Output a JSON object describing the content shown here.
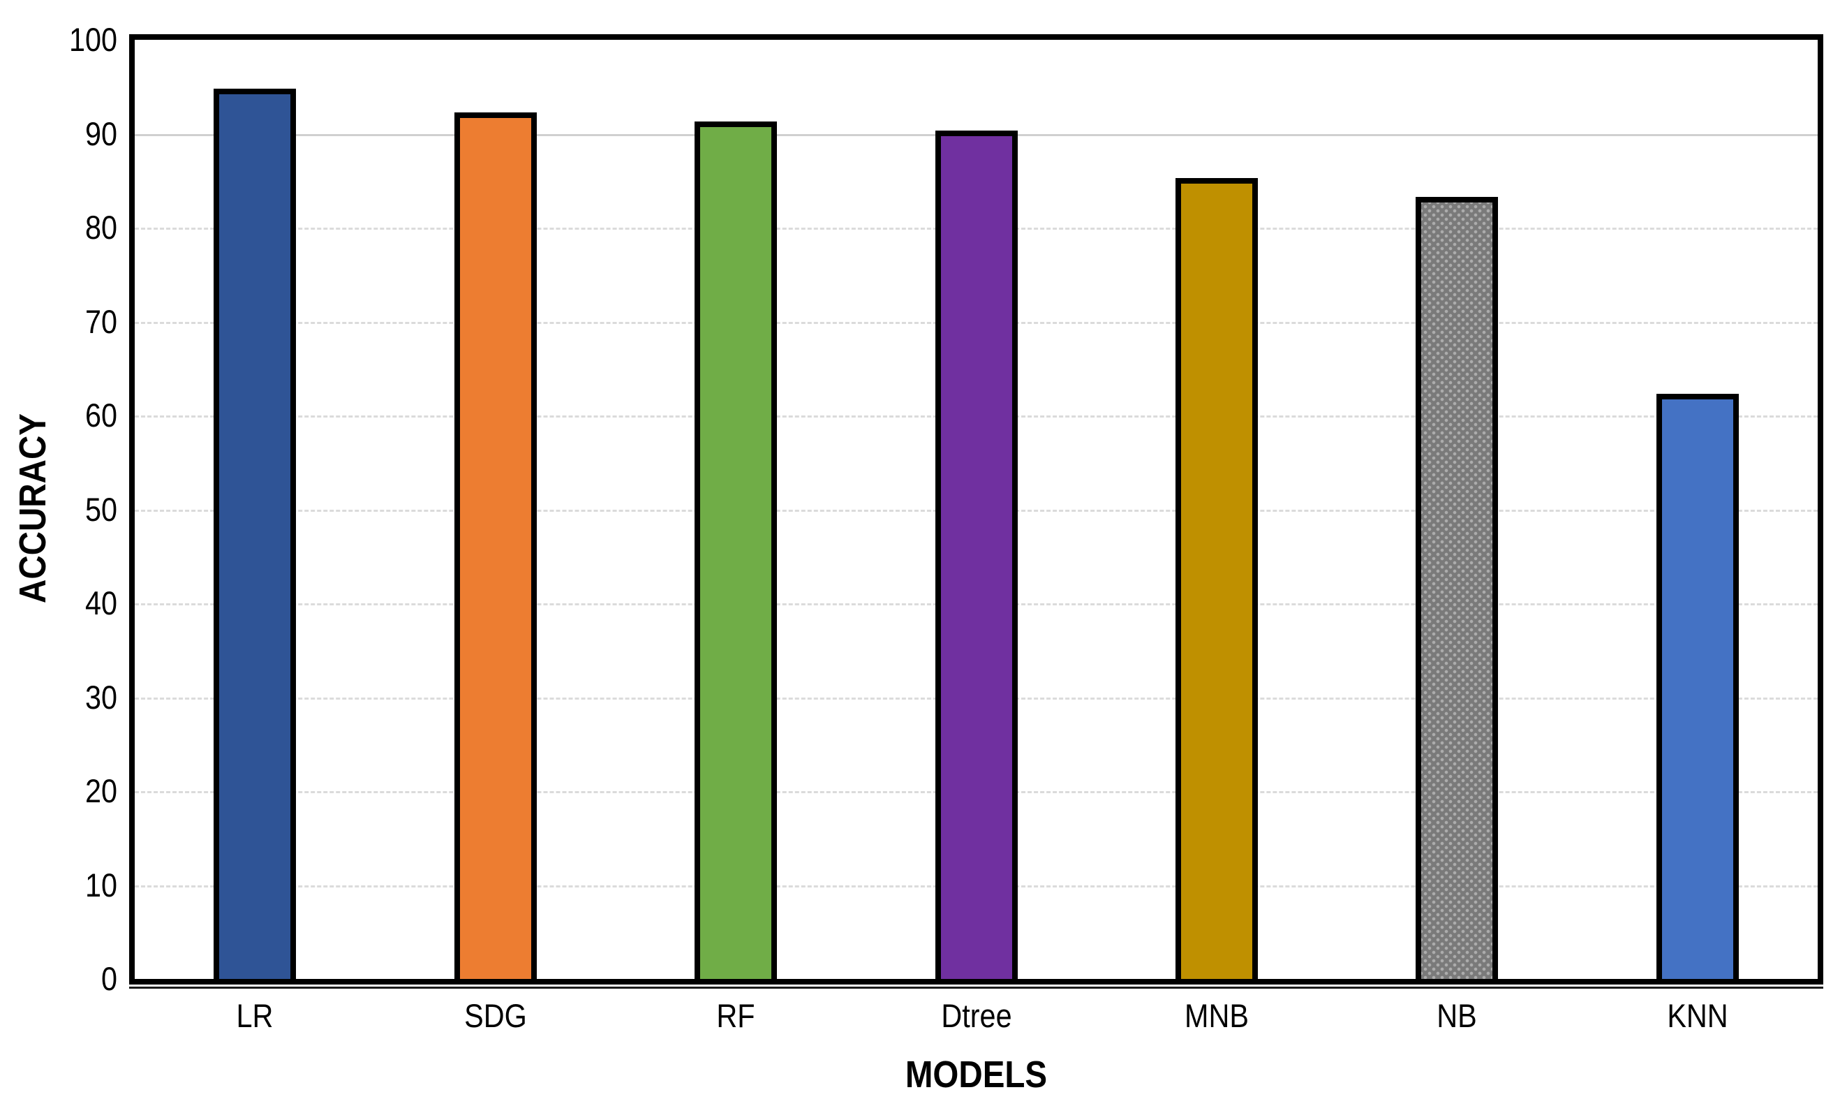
{
  "chart_data": {
    "type": "bar",
    "title": "",
    "xlabel": "MODELS",
    "ylabel": "ACCURACY",
    "categories": [
      "LR",
      "SDG",
      "RF",
      "Dtree",
      "MNB",
      "NB",
      "KNN"
    ],
    "values": [
      94.5,
      92,
      91,
      90,
      85,
      83,
      62
    ],
    "bar_colors": [
      "#2F5496",
      "#ED7D31",
      "#70AD47",
      "#7030A0",
      "#BF9000",
      "#7F7F7F",
      "#4472C4"
    ],
    "bar_border_color": "#000000",
    "patterned_bar": {
      "category": "NB",
      "index": 5,
      "style": "light-dots-on-gray",
      "base_color": "#7A7A7A",
      "dot_color": "#ACACAC"
    },
    "ylim": [
      0,
      100
    ],
    "ytick_step": 10,
    "ytick_labels": [
      "0",
      "10",
      "20",
      "30",
      "40",
      "50",
      "60",
      "70",
      "80",
      "90",
      "100"
    ],
    "grid": "horizontal",
    "gridline_style_default": "dotted",
    "solid_gridline_values": [
      90
    ],
    "gridline_color": "#DBDBDB",
    "legend": "none",
    "plot_frame": "black"
  }
}
